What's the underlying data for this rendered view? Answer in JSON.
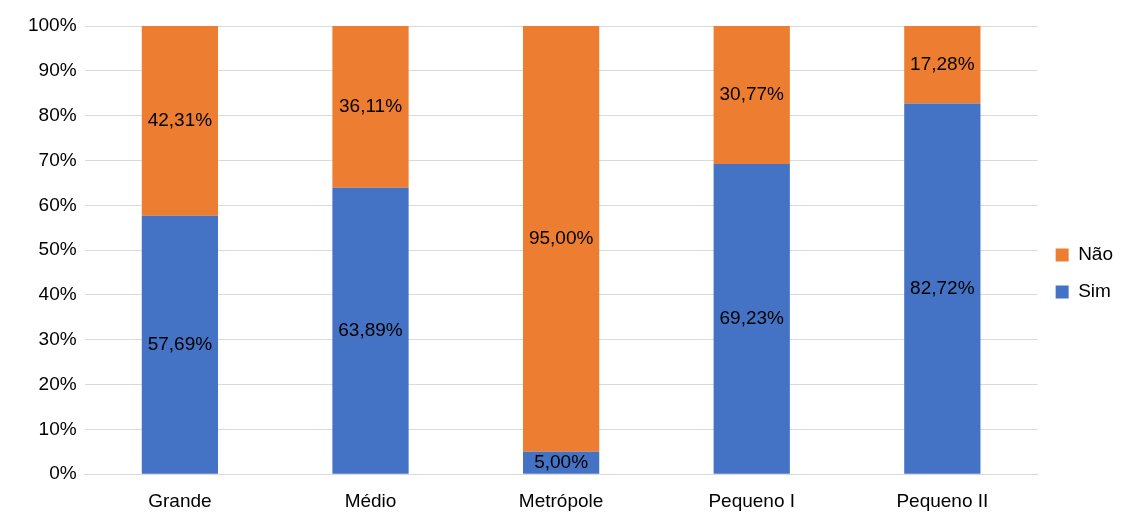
{
  "chart_data": {
    "type": "bar",
    "stacked": true,
    "categories": [
      "Grande",
      "Médio",
      "Metrópole",
      "Pequeno I",
      "Pequeno II"
    ],
    "series": [
      {
        "name": "Sim",
        "color": "#4472c4",
        "values": [
          57.69,
          63.89,
          5.0,
          69.23,
          82.72
        ],
        "value_labels": [
          "57,69%",
          "63,89%",
          "5,00%",
          "69,23%",
          "82,72%"
        ]
      },
      {
        "name": "Não",
        "color": "#ed7d31",
        "values": [
          42.31,
          36.11,
          95.0,
          30.77,
          17.28
        ],
        "value_labels": [
          "42,31%",
          "36,11%",
          "95,00%",
          "30,77%",
          "17,28%"
        ]
      }
    ],
    "ylim": [
      0,
      100
    ],
    "yticks": [
      {
        "value": 0,
        "label": "0%"
      },
      {
        "value": 10,
        "label": "10%"
      },
      {
        "value": 20,
        "label": "20%"
      },
      {
        "value": 30,
        "label": "30%"
      },
      {
        "value": 40,
        "label": "40%"
      },
      {
        "value": 50,
        "label": "50%"
      },
      {
        "value": 60,
        "label": "60%"
      },
      {
        "value": 70,
        "label": "70%"
      },
      {
        "value": 80,
        "label": "80%"
      },
      {
        "value": 90,
        "label": "90%"
      },
      {
        "value": 100,
        "label": "100%"
      }
    ],
    "grid": "y",
    "legend": "right"
  }
}
